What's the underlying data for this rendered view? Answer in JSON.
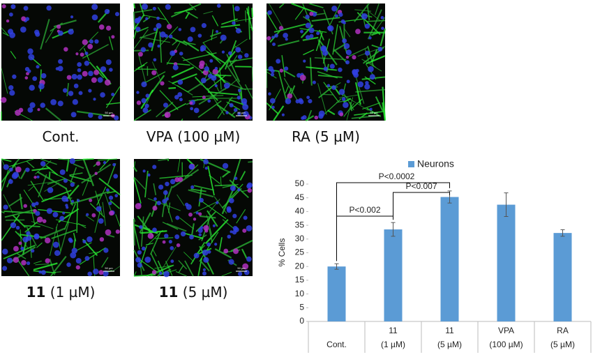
{
  "panels": [
    {
      "caption": "Cont.",
      "scale": "50 µm"
    },
    {
      "caption": "VPA (100 µM)",
      "scale": "50 µm"
    },
    {
      "caption": "RA (5 µM)",
      "scale": "50 µm"
    },
    {
      "caption_bold": "11",
      "caption": "(1 µM)",
      "scale": "50 µm"
    },
    {
      "caption_bold": "11",
      "caption": "(5 µM)",
      "scale": "50 µm"
    }
  ],
  "chart_data": {
    "type": "bar",
    "categories": [
      [
        "Cont."
      ],
      [
        "11",
        "(1 µM)"
      ],
      [
        "11",
        "(5 µM)"
      ],
      [
        "VPA",
        "(100 µM)"
      ],
      [
        "RA",
        "(5 µM)"
      ]
    ],
    "series": [
      {
        "name": "Neurons",
        "color": "#5b9bd5",
        "values": [
          20,
          33.5,
          45.3,
          42.5,
          32.2
        ],
        "errors": [
          1,
          2.5,
          2.2,
          4.3,
          1.2
        ]
      }
    ],
    "y_label": "% Cells",
    "ylim": [
      0,
      50
    ],
    "yticks": [
      0,
      5,
      10,
      15,
      20,
      25,
      30,
      35,
      40,
      45,
      50
    ],
    "legend": "top",
    "annotations": [
      {
        "text": "P<0.0002",
        "between": [
          0,
          2
        ]
      },
      {
        "text": "P<0.007",
        "between": [
          1,
          2
        ]
      },
      {
        "text": "P<0.002",
        "between": [
          0,
          1
        ]
      }
    ]
  }
}
